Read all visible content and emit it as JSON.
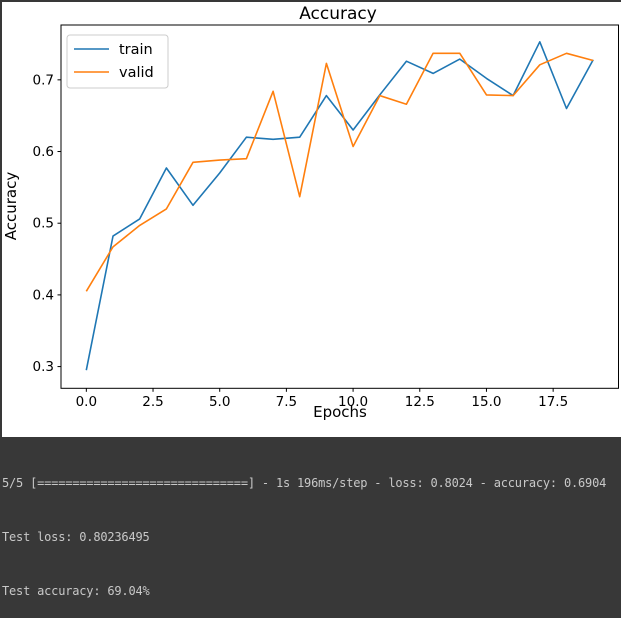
{
  "chart_data": {
    "type": "line",
    "title": "Accuracy",
    "xlabel": "Epochs",
    "ylabel": "Accuracy",
    "x": [
      0,
      1,
      2,
      3,
      4,
      5,
      6,
      7,
      8,
      9,
      10,
      11,
      12,
      13,
      14,
      15,
      16,
      17,
      18,
      19
    ],
    "series": [
      {
        "name": "train",
        "color": "#1f77b4",
        "values": [
          0.295,
          0.482,
          0.506,
          0.577,
          0.525,
          0.57,
          0.62,
          0.617,
          0.62,
          0.678,
          0.63,
          0.679,
          0.726,
          0.709,
          0.729,
          0.702,
          0.678,
          0.753,
          0.66,
          0.728
        ]
      },
      {
        "name": "valid",
        "color": "#ff7f0e",
        "values": [
          0.405,
          0.467,
          0.497,
          0.52,
          0.585,
          0.588,
          0.59,
          0.684,
          0.537,
          0.723,
          0.607,
          0.678,
          0.666,
          0.737,
          0.737,
          0.679,
          0.678,
          0.721,
          0.737,
          0.727
        ]
      }
    ],
    "xticks": [
      0.0,
      2.5,
      5.0,
      7.5,
      10.0,
      12.5,
      15.0,
      17.5
    ],
    "yticks": [
      0.3,
      0.4,
      0.5,
      0.6,
      0.7
    ],
    "xlim": [
      -0.95,
      19.95
    ],
    "ylim": [
      0.2697,
      0.7765
    ],
    "grid": false,
    "legend_position": "upper left"
  },
  "figure": {
    "background": "#ffffff"
  },
  "terminal": {
    "bg": "#383838",
    "fg": "#c8c8c8",
    "lines": [
      "5/5 [==============================] - 1s 196ms/step - loss: 0.8024 - accuracy: 0.6904",
      "Test loss: 0.80236495",
      "Test accuracy: 69.04%"
    ]
  }
}
